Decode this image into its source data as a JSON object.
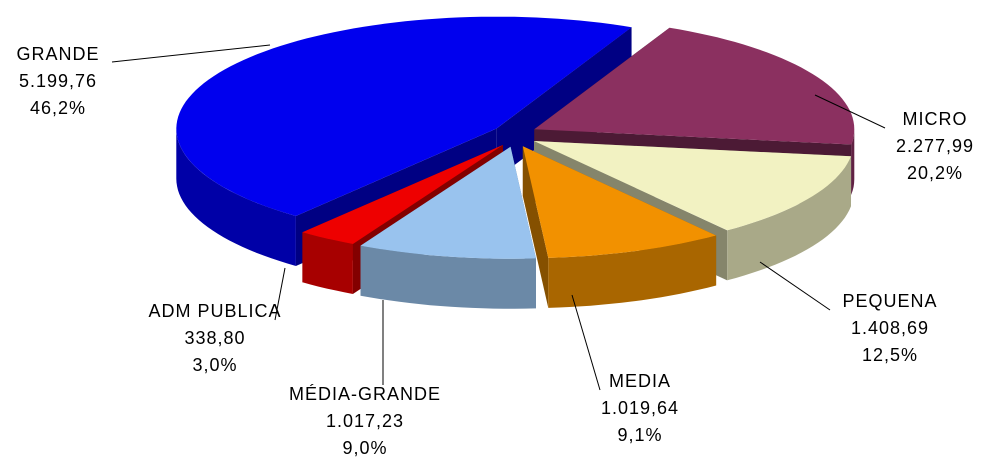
{
  "chart_data": {
    "type": "pie",
    "categories": [
      "MICRO",
      "PEQUENA",
      "MEDIA",
      "MÉDIA-GRANDE",
      "ADM PUBLICA",
      "GRANDE"
    ],
    "values": [
      2277.99,
      1408.69,
      1019.64,
      1017.23,
      338.8,
      5199.76
    ],
    "value_labels": [
      "2.277,99",
      "1.408,69",
      "1.019,64",
      "1.017,23",
      "338,80",
      "5.199,76"
    ],
    "percents": [
      20.2,
      12.5,
      9.1,
      9.0,
      3.0,
      46.2
    ],
    "percent_labels": [
      "20,2%",
      "12,5%",
      "9,1%",
      "9,0%",
      "3,0%",
      "46,2%"
    ],
    "colors": [
      "#8b3060",
      "#f2f2c2",
      "#f29100",
      "#99c3ee",
      "#ee0000",
      "#0000ee"
    ]
  }
}
